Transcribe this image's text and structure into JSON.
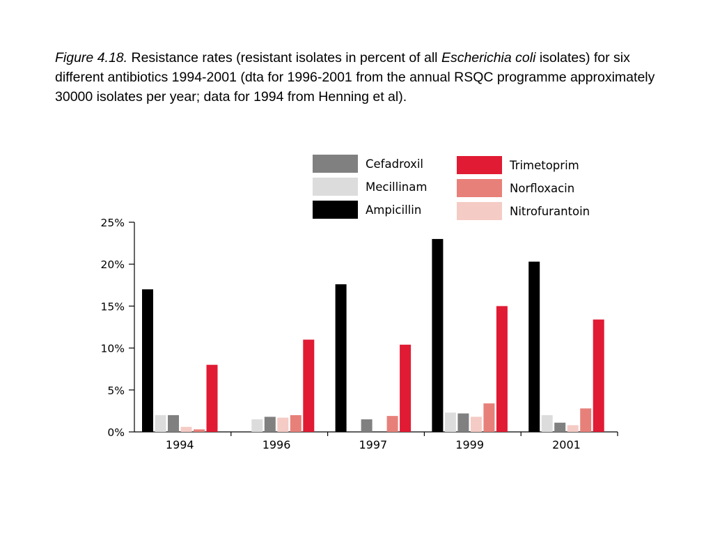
{
  "caption": {
    "figure_label": "Figure 4.18.",
    "text_1": " Resistance rates (resistant isolates in percent of all ",
    "organism": "Escherichia coli",
    "text_2": " isolates) for six different antibiotics 1994-2001 (dta for 1996-2001 from the annual RSQC programme approximately 30000 isolates per year; data for 1994 from Henning et al)."
  },
  "chart_data": {
    "type": "bar",
    "categories": [
      "1994",
      "1996",
      "1997",
      "1999",
      "2001"
    ],
    "series": [
      {
        "name": "Ampicillin",
        "color": "#000000",
        "values": [
          17.0,
          null,
          17.6,
          23.0,
          20.3
        ]
      },
      {
        "name": "Mecillinam",
        "color": "#dcdcdc",
        "values": [
          2.0,
          1.5,
          null,
          2.3,
          2.0
        ]
      },
      {
        "name": "Cefadroxil",
        "color": "#808080",
        "values": [
          2.0,
          1.8,
          1.5,
          2.2,
          1.1
        ]
      },
      {
        "name": "Nitrofurantoin",
        "color": "#f5cbc5",
        "values": [
          0.6,
          1.7,
          null,
          1.8,
          0.8
        ]
      },
      {
        "name": "Norfloxacin",
        "color": "#e8807a",
        "values": [
          0.3,
          2.0,
          1.9,
          3.4,
          2.8
        ]
      },
      {
        "name": "Trimetoprim",
        "color": "#e01b33",
        "values": [
          8.0,
          11.0,
          10.4,
          15.0,
          13.4
        ]
      }
    ],
    "legend_order": [
      "Cefadroxil",
      "Mecillinam",
      "Ampicillin",
      "Trimetoprim",
      "Norfloxacin",
      "Nitrofurantoin"
    ],
    "ytick_labels": [
      "0%",
      "5%",
      "10%",
      "15%",
      "20%",
      "25%"
    ],
    "ylim": [
      0,
      25
    ],
    "grid": false,
    "legend_position": "top"
  }
}
